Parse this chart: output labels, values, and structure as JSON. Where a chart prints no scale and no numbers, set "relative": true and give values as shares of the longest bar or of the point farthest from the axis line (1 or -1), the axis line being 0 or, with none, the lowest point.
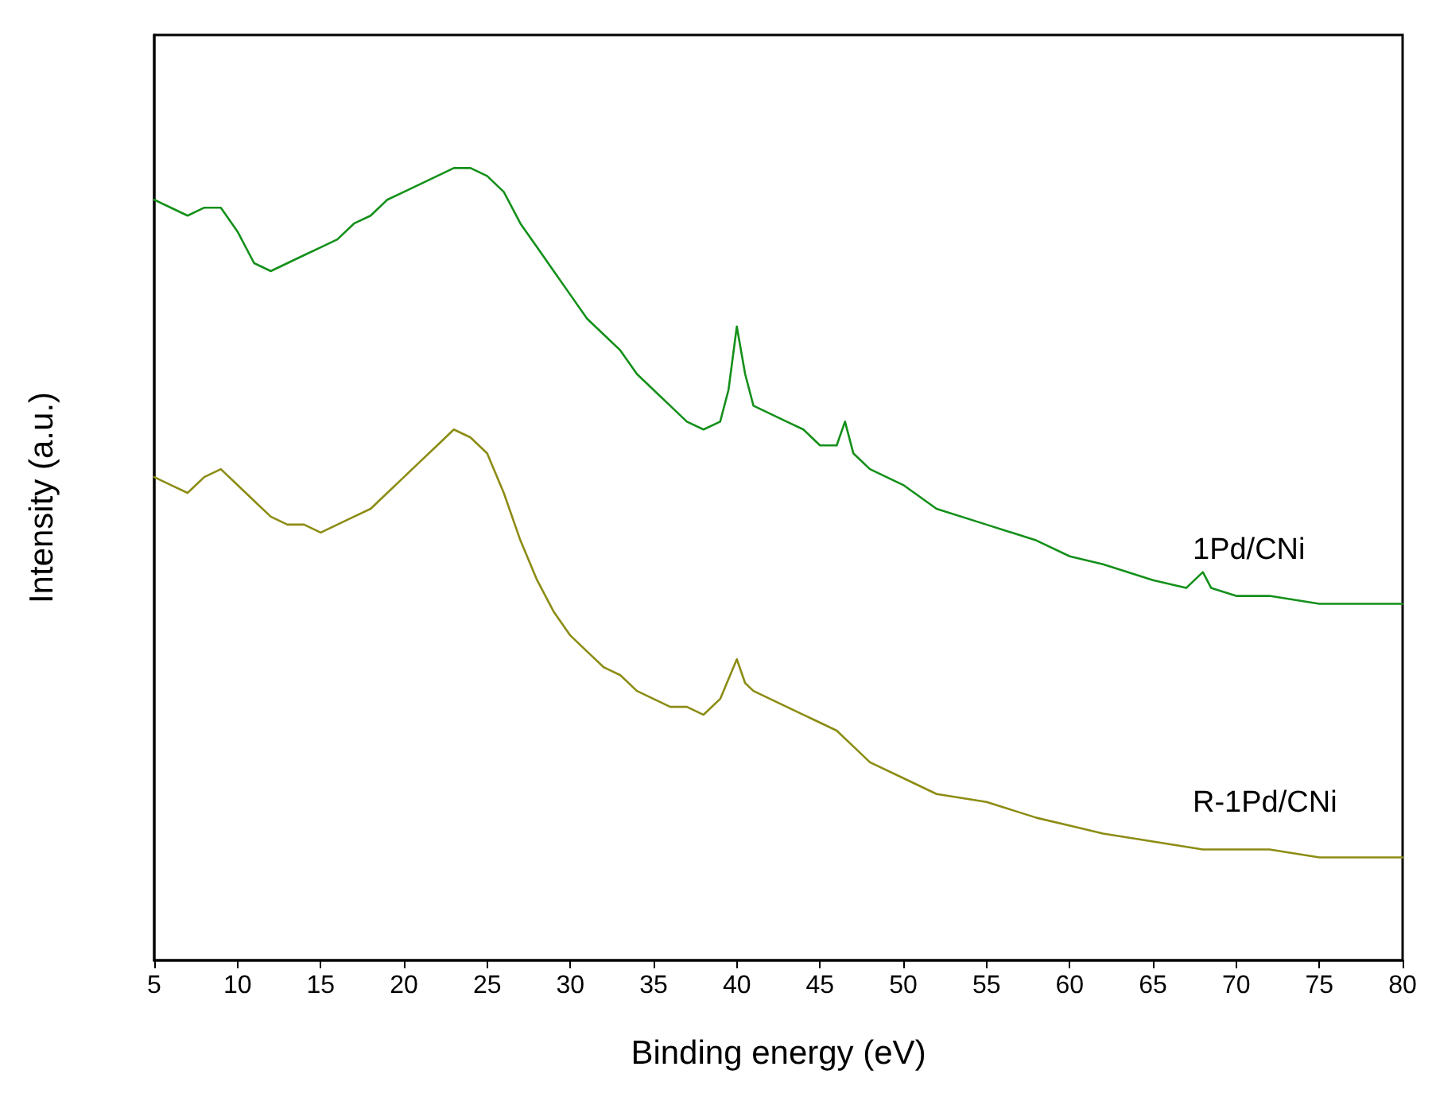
{
  "chart_data": {
    "type": "line",
    "relative": true,
    "xlabel": "Binding energy (eV)",
    "ylabel": "Intensity (a.u.)",
    "xlim": [
      5,
      80
    ],
    "xticks": [
      5,
      10,
      15,
      20,
      25,
      30,
      35,
      40,
      45,
      50,
      55,
      60,
      65,
      70,
      75,
      80
    ],
    "grid": false,
    "legend": false,
    "marker": "none",
    "line_style": "solid",
    "series": [
      {
        "name": "1Pd/CNi",
        "color": "#14901a",
        "x": [
          5,
          6,
          7,
          8,
          9,
          10,
          11,
          12,
          13,
          14,
          15,
          16,
          17,
          18,
          19,
          20,
          21,
          22,
          23,
          24,
          25,
          26,
          27,
          28,
          29,
          30,
          31,
          32,
          33,
          34,
          35,
          36,
          37,
          38,
          39,
          39.5,
          40,
          40.5,
          41,
          42,
          43,
          44,
          45,
          46,
          46.5,
          47,
          48,
          50,
          52,
          55,
          58,
          60,
          62,
          65,
          67,
          68,
          68.5,
          70,
          72,
          75,
          78,
          80
        ],
        "values": [
          0.96,
          0.95,
          0.94,
          0.95,
          0.95,
          0.92,
          0.88,
          0.87,
          0.88,
          0.89,
          0.9,
          0.91,
          0.93,
          0.94,
          0.96,
          0.97,
          0.98,
          0.99,
          1,
          1,
          0.99,
          0.97,
          0.93,
          0.9,
          0.87,
          0.84,
          0.81,
          0.79,
          0.77,
          0.74,
          0.72,
          0.7,
          0.68,
          0.67,
          0.68,
          0.72,
          0.8,
          0.74,
          0.7,
          0.69,
          0.68,
          0.67,
          0.65,
          0.65,
          0.68,
          0.64,
          0.62,
          0.6,
          0.57,
          0.55,
          0.53,
          0.51,
          0.5,
          0.48,
          0.47,
          0.49,
          0.47,
          0.46,
          0.46,
          0.45,
          0.45,
          0.45
        ]
      },
      {
        "name": "R-1Pd/CNi",
        "color": "#8c8c14",
        "x": [
          5,
          6,
          7,
          8,
          9,
          10,
          11,
          12,
          13,
          14,
          15,
          16,
          17,
          18,
          19,
          20,
          21,
          22,
          23,
          24,
          25,
          26,
          27,
          28,
          29,
          30,
          31,
          32,
          33,
          34,
          35,
          36,
          37,
          38,
          39,
          40,
          40.5,
          41,
          42,
          43,
          44,
          45,
          46,
          47,
          48,
          50,
          52,
          55,
          58,
          60,
          62,
          65,
          68,
          70,
          72,
          75,
          78,
          80
        ],
        "values": [
          0.61,
          0.6,
          0.59,
          0.61,
          0.62,
          0.6,
          0.58,
          0.56,
          0.55,
          0.55,
          0.54,
          0.55,
          0.56,
          0.57,
          0.59,
          0.61,
          0.63,
          0.65,
          0.67,
          0.66,
          0.64,
          0.59,
          0.53,
          0.48,
          0.44,
          0.41,
          0.39,
          0.37,
          0.36,
          0.34,
          0.33,
          0.32,
          0.32,
          0.31,
          0.33,
          0.38,
          0.35,
          0.34,
          0.33,
          0.32,
          0.31,
          0.3,
          0.29,
          0.27,
          0.25,
          0.23,
          0.21,
          0.2,
          0.18,
          0.17,
          0.16,
          0.15,
          0.14,
          0.14,
          0.14,
          0.13,
          0.13,
          0.13
        ]
      }
    ]
  }
}
